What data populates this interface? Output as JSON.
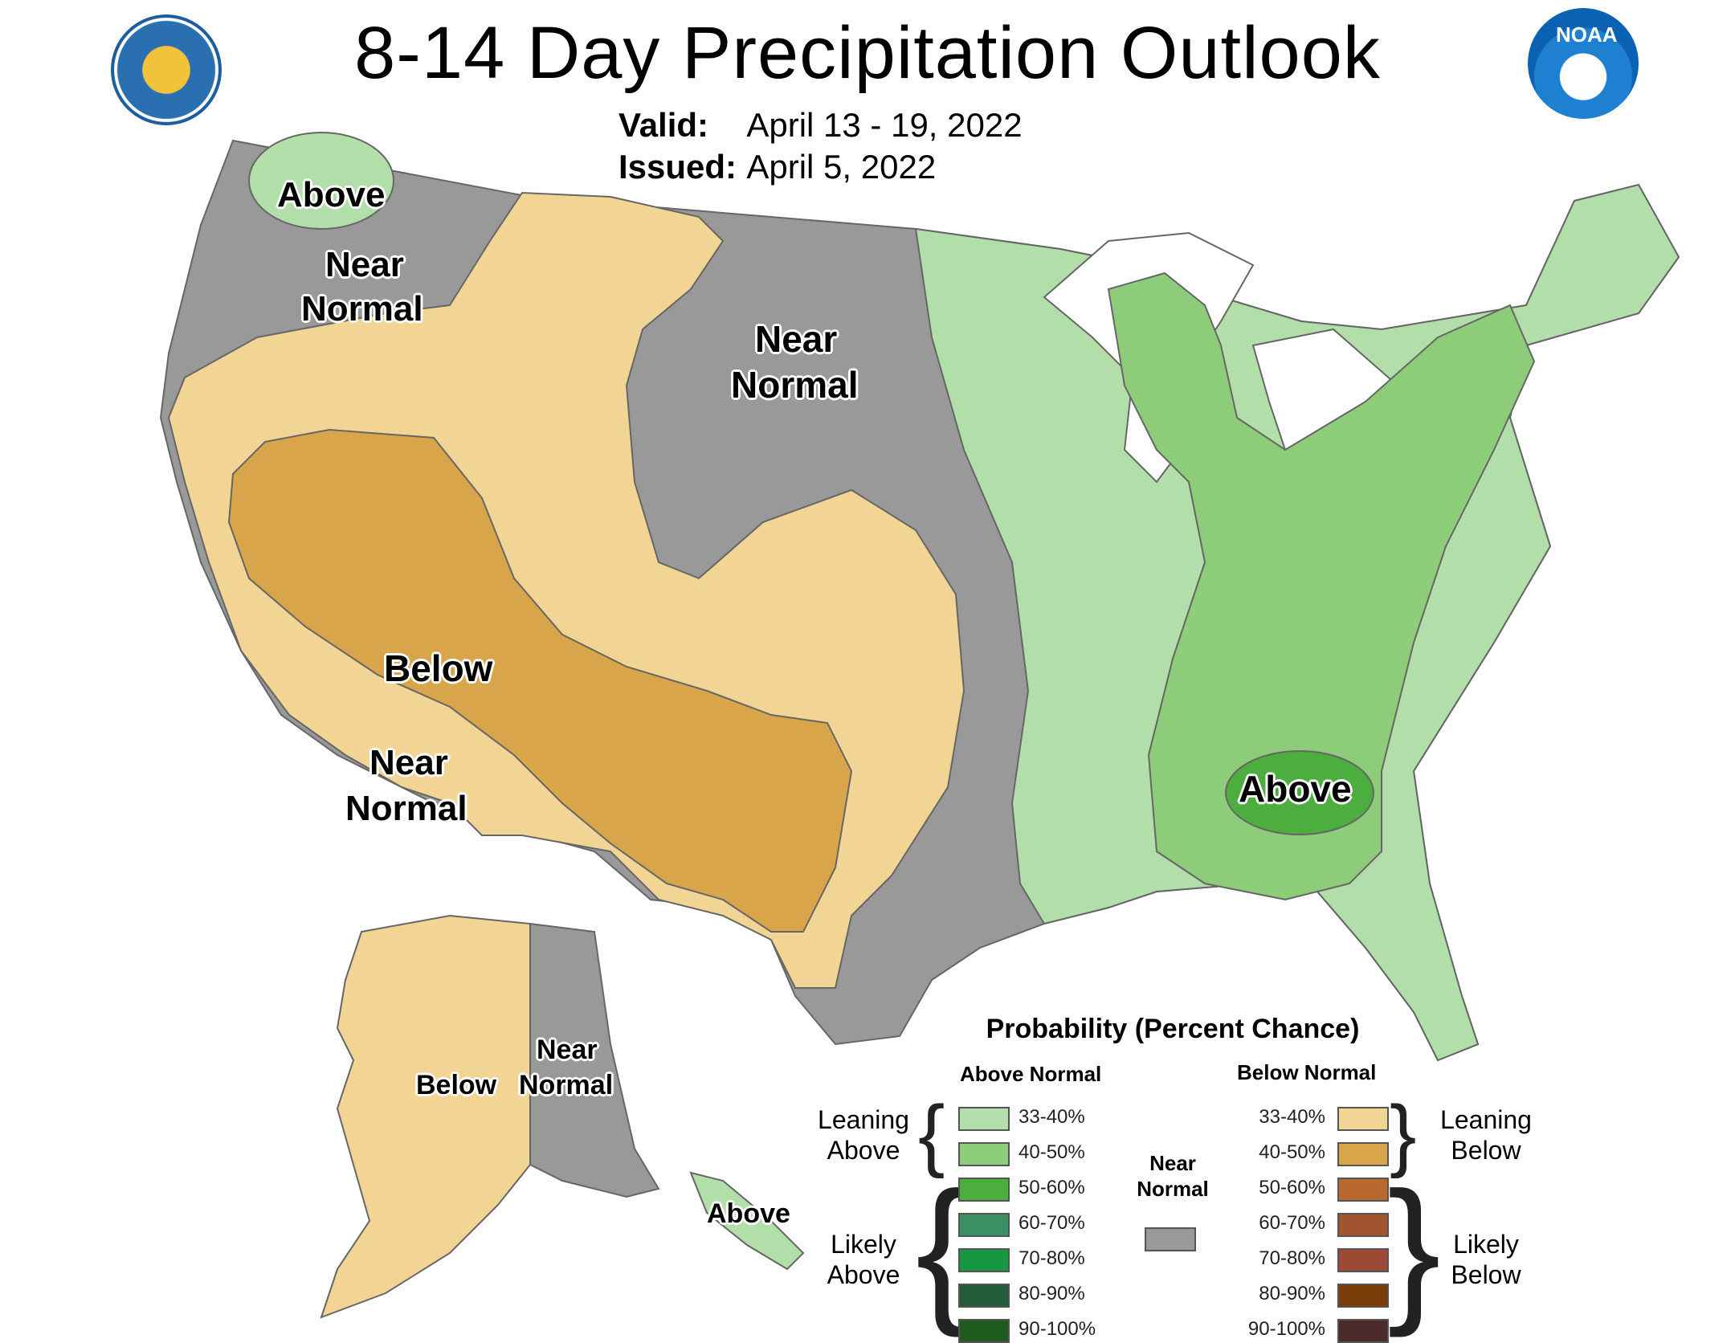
{
  "header": {
    "title": "8-14 Day Precipitation Outlook",
    "valid_label": "Valid:",
    "valid_value": "April 13 - 19, 2022",
    "issued_label": "Issued:",
    "issued_value": "April 5, 2022"
  },
  "logos": {
    "left": "department-of-commerce-seal",
    "right": "noaa-logo",
    "right_text": "NOAA"
  },
  "map_labels": {
    "pnw_above": "Above",
    "pnw_near_1": "Near",
    "pnw_near_2": "Normal",
    "plains_near_1": "Near",
    "plains_near_2": "Normal",
    "sw_below": "Below",
    "socal_near_1": "Near",
    "socal_near_2": "Normal",
    "se_above": "Above",
    "ak_below": "Below",
    "ak_near_1": "Near",
    "ak_near_2": "Normal",
    "ak_above": "Above"
  },
  "legend": {
    "title": "Probability (Percent Chance)",
    "above_header": "Above Normal",
    "below_header": "Below Normal",
    "leaning_above_1": "Leaning",
    "leaning_above_2": "Above",
    "likely_above_1": "Likely",
    "likely_above_2": "Above",
    "leaning_below_1": "Leaning",
    "leaning_below_2": "Below",
    "likely_below_1": "Likely",
    "likely_below_2": "Below",
    "near_1": "Near",
    "near_2": "Normal",
    "near_color": "#999999",
    "above": [
      {
        "label": "33-40%",
        "color": "#b2dfa9"
      },
      {
        "label": "40-50%",
        "color": "#8dcc78"
      },
      {
        "label": "50-60%",
        "color": "#4cae3f"
      },
      {
        "label": "60-70%",
        "color": "#3a8f63"
      },
      {
        "label": "70-80%",
        "color": "#17973f"
      },
      {
        "label": "80-90%",
        "color": "#255c3a"
      },
      {
        "label": "90-100%",
        "color": "#1f5b1f"
      }
    ],
    "below": [
      {
        "label": "33-40%",
        "color": "#f2d594"
      },
      {
        "label": "40-50%",
        "color": "#d9a54a"
      },
      {
        "label": "50-60%",
        "color": "#b9692d"
      },
      {
        "label": "60-70%",
        "color": "#a0552e"
      },
      {
        "label": "70-80%",
        "color": "#9c4a36"
      },
      {
        "label": "80-90%",
        "color": "#7a3d0a"
      },
      {
        "label": "90-100%",
        "color": "#4b2b2b"
      }
    ]
  }
}
